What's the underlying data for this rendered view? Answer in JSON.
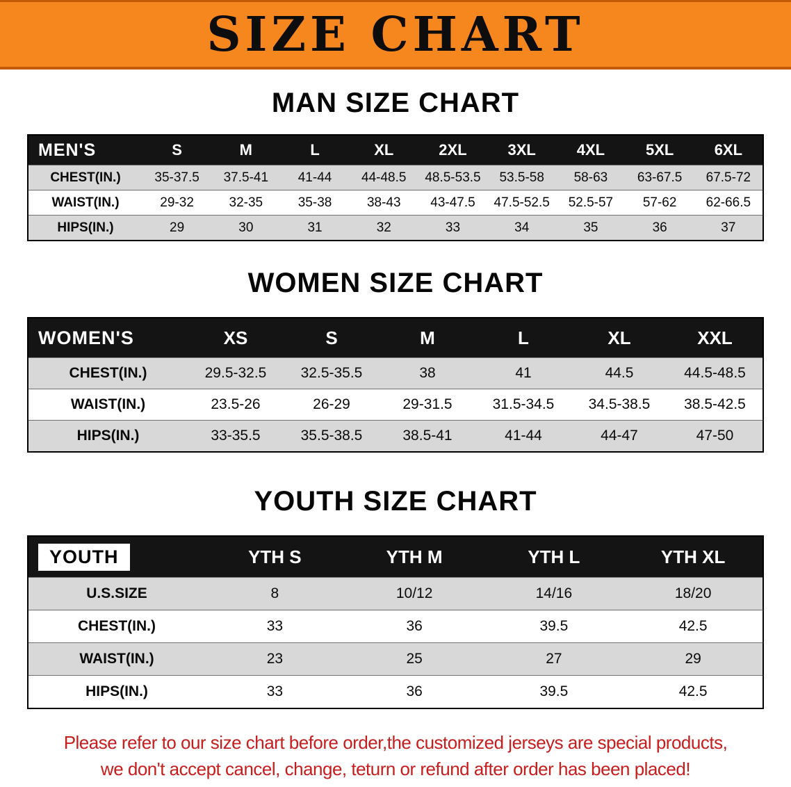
{
  "banner": {
    "title": "SIZE CHART",
    "bg_color": "#f6871f",
    "text_color": "#0d0d0d"
  },
  "sections": [
    {
      "heading": "MAN SIZE CHART",
      "table": {
        "header": [
          "MEN'S",
          "S",
          "M",
          "L",
          "XL",
          "2XL",
          "3XL",
          "4XL",
          "5XL",
          "6XL"
        ],
        "rows": [
          [
            "CHEST(IN.)",
            "35-37.5",
            "37.5-41",
            "41-44",
            "44-48.5",
            "48.5-53.5",
            "53.5-58",
            "58-63",
            "63-67.5",
            "67.5-72"
          ],
          [
            "WAIST(IN.)",
            "29-32",
            "32-35",
            "35-38",
            "38-43",
            "43-47.5",
            "47.5-52.5",
            "52.5-57",
            "57-62",
            "62-66.5"
          ],
          [
            "HIPS(IN.)",
            "29",
            "30",
            "31",
            "32",
            "33",
            "34",
            "35",
            "36",
            "37"
          ]
        ]
      }
    },
    {
      "heading": "WOMEN SIZE CHART",
      "table": {
        "header": [
          "WOMEN'S",
          "XS",
          "S",
          "M",
          "L",
          "XL",
          "XXL"
        ],
        "rows": [
          [
            "CHEST(IN.)",
            "29.5-32.5",
            "32.5-35.5",
            "38",
            "41",
            "44.5",
            "44.5-48.5"
          ],
          [
            "WAIST(IN.)",
            "23.5-26",
            "26-29",
            "29-31.5",
            "31.5-34.5",
            "34.5-38.5",
            "38.5-42.5"
          ],
          [
            "HIPS(IN.)",
            "33-35.5",
            "35.5-38.5",
            "38.5-41",
            "41-44",
            "44-47",
            "47-50"
          ]
        ]
      }
    },
    {
      "heading": "YOUTH SIZE CHART",
      "table": {
        "header": [
          "YOUTH",
          "YTH S",
          "YTH M",
          "YTH L",
          "YTH XL"
        ],
        "rows": [
          [
            "U.S.SIZE",
            "8",
            "10/12",
            "14/16",
            "18/20"
          ],
          [
            "CHEST(IN.)",
            "33",
            "36",
            "39.5",
            "42.5"
          ],
          [
            "WAIST(IN.)",
            "23",
            "25",
            "27",
            "29"
          ],
          [
            "HIPS(IN.)",
            "33",
            "36",
            "39.5",
            "42.5"
          ]
        ]
      }
    }
  ],
  "footer": {
    "line1": "Please refer to our size chart before order,the customized jerseys are special products,",
    "line2": "we don't accept cancel, change, teturn or refund after order has been placed!",
    "text_color": "#c71d1d"
  },
  "colors": {
    "header_row_bg": "#141414",
    "stripe_gray": "#d8d8d8",
    "banner_orange": "#f6871f"
  }
}
